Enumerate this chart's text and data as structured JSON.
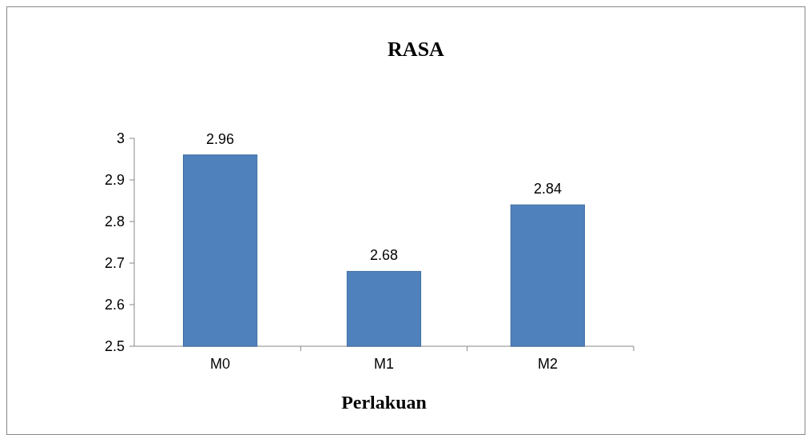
{
  "chart_data": {
    "type": "bar",
    "title": "RASA",
    "xlabel": "Perlakuan",
    "categories": [
      "M0",
      "M1",
      "M2"
    ],
    "values": [
      2.96,
      2.68,
      2.84
    ],
    "color": "#4f81bd",
    "ylim": [
      2.5,
      3
    ],
    "yticks": [
      2.5,
      2.6,
      2.7,
      2.8,
      2.9,
      3
    ],
    "data_labels": true
  }
}
